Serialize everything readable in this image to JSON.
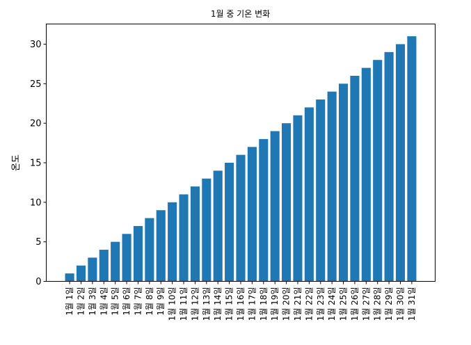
{
  "chart_data": {
    "type": "bar",
    "title": "1월 중 기온 변화",
    "xlabel": "",
    "ylabel": "온도",
    "categories": [
      "1월 1일",
      "1월 2일",
      "1월 3일",
      "1월 4일",
      "1월 5일",
      "1월 6일",
      "1월 7일",
      "1월 8일",
      "1월 9일",
      "1월 10일",
      "1월 11일",
      "1월 12일",
      "1월 13일",
      "1월 14일",
      "1월 15일",
      "1월 16일",
      "1월 17일",
      "1월 18일",
      "1월 19일",
      "1월 20일",
      "1월 21일",
      "1월 22일",
      "1월 23일",
      "1월 24일",
      "1월 25일",
      "1월 26일",
      "1월 27일",
      "1월 28일",
      "1월 29일",
      "1월 30일",
      "1월 31일"
    ],
    "values": [
      1,
      2,
      3,
      4,
      5,
      6,
      7,
      8,
      9,
      10,
      11,
      12,
      13,
      14,
      15,
      16,
      17,
      18,
      19,
      20,
      21,
      22,
      23,
      24,
      25,
      26,
      27,
      28,
      29,
      30,
      31
    ],
    "ylim": [
      0,
      32.55
    ],
    "yticks": [
      0,
      5,
      10,
      15,
      20,
      25,
      30
    ],
    "grid": false,
    "bar_color": "#1f77b4"
  }
}
